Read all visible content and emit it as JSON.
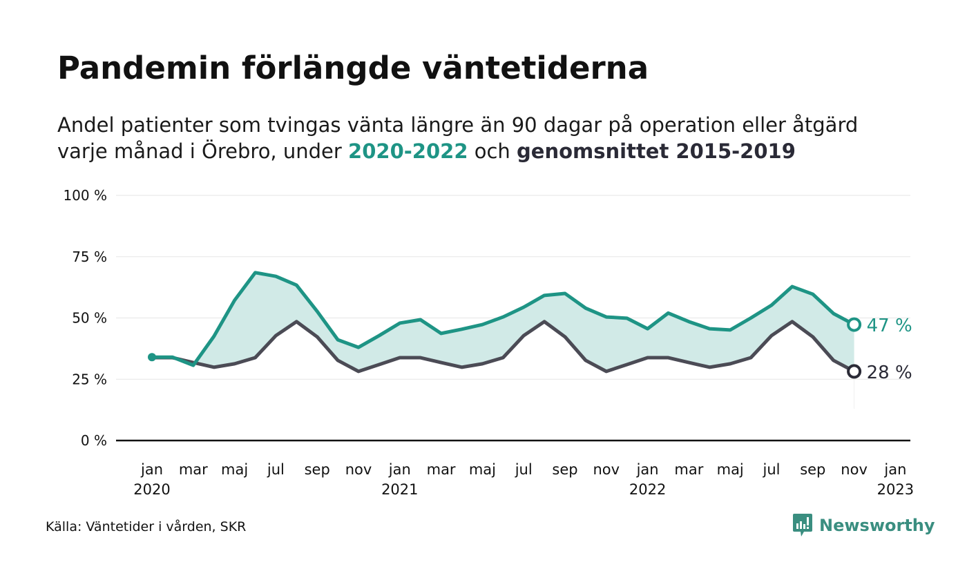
{
  "title": "Pandemin förlängde väntetiderna",
  "subtitle": {
    "part1": "Andel patienter som tvingas vänta längre än 90 dagar på operation eller åtgärd",
    "part2": "varje månad i Örebro, under ",
    "highlight1": "2020-2022",
    "part3": " och ",
    "highlight2": "genomsnittet 2015-2019"
  },
  "source": "Källa: Väntetider i vården, SKR",
  "logo": "Newsworthy",
  "colors": {
    "teal": "#1e9485",
    "dark": "#4b4b55",
    "fill": "#cfe9e6"
  },
  "chart_data": {
    "type": "line",
    "ylabel": "",
    "ylim": [
      0,
      100
    ],
    "yticks": [
      0,
      25,
      50,
      75,
      100
    ],
    "ytick_labels": [
      "0 %",
      "25 %",
      "50 %",
      "75 %",
      "100 %"
    ],
    "x_start": "2020-01",
    "xtick_labels": [
      {
        "m": 0,
        "label": "jan",
        "year": "2020"
      },
      {
        "m": 2,
        "label": "mar"
      },
      {
        "m": 4,
        "label": "maj"
      },
      {
        "m": 6,
        "label": "jul"
      },
      {
        "m": 8,
        "label": "sep"
      },
      {
        "m": 10,
        "label": "nov"
      },
      {
        "m": 12,
        "label": "jan",
        "year": "2021"
      },
      {
        "m": 14,
        "label": "mar"
      },
      {
        "m": 16,
        "label": "maj"
      },
      {
        "m": 18,
        "label": "jul"
      },
      {
        "m": 20,
        "label": "sep"
      },
      {
        "m": 22,
        "label": "nov"
      },
      {
        "m": 24,
        "label": "jan",
        "year": "2022"
      },
      {
        "m": 26,
        "label": "mar"
      },
      {
        "m": 28,
        "label": "maj"
      },
      {
        "m": 30,
        "label": "jul"
      },
      {
        "m": 32,
        "label": "sep"
      },
      {
        "m": 34,
        "label": "nov"
      },
      {
        "m": 36,
        "label": "jan",
        "year": "2023"
      }
    ],
    "series": [
      {
        "name": "2020-2022",
        "end_label": "47 %",
        "values": [
          34,
          34,
          30.7,
          42.5,
          57.2,
          68.5,
          67,
          63.4,
          52.7,
          41.1,
          38,
          42.8,
          47.9,
          49.3,
          43.7,
          45.4,
          47.3,
          50.4,
          54.4,
          59.2,
          60,
          54,
          50.4,
          49.9,
          45.6,
          52,
          48.5,
          45.6,
          45.1,
          50,
          55.2,
          62.8,
          59.7,
          51.8,
          47.3
        ]
      },
      {
        "name": "genomsnittet 2015-2019",
        "end_label": "28 %",
        "values": [
          33.8,
          33.8,
          31.8,
          29.9,
          31.3,
          33.8,
          42.8,
          48.5,
          42.3,
          32.7,
          28.2,
          31,
          33.8,
          33.8,
          31.8,
          29.9,
          31.3,
          33.8,
          42.8,
          48.5,
          42.3,
          32.7,
          28.2,
          31,
          33.8,
          33.8,
          31.8,
          29.9,
          31.3,
          33.8,
          42.8,
          48.5,
          42.3,
          32.7,
          28.2
        ]
      }
    ]
  }
}
